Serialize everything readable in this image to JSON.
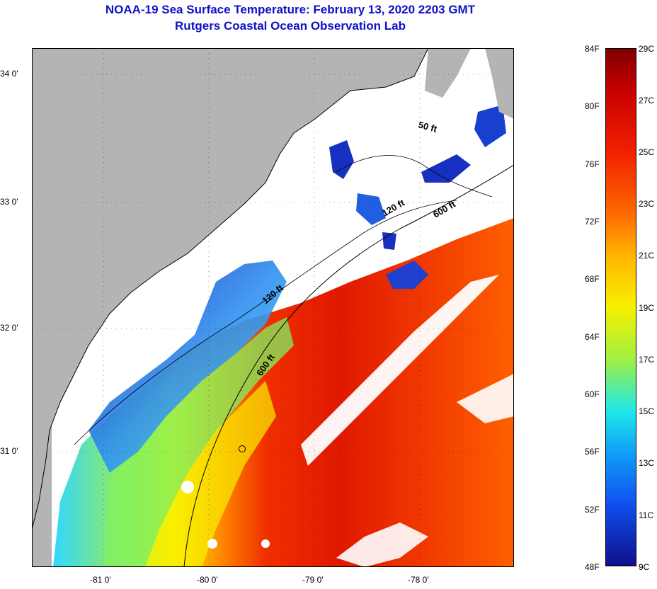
{
  "header": {
    "title": "NOAA-19 Sea Surface Temperature:  February 13, 2020 2203 GMT",
    "subtitle": "Rutgers Coastal Ocean Observation Lab"
  },
  "map": {
    "lat_labels": [
      "34 0'",
      "33 0'",
      "32 0'",
      "31 0'"
    ],
    "lon_labels": [
      "-81 0'",
      "-80 0'",
      "-79 0'",
      "-78 0'"
    ],
    "contour_labels": [
      "50 ft",
      "120 ft",
      "600 ft",
      "120 ft",
      "600 ft"
    ],
    "colors": {
      "land": "#b4b4b4",
      "cloud": "#ffffff",
      "cold": "#1030c8",
      "warm": "#e02000"
    }
  },
  "colorbar": {
    "fahrenheit": [
      "84F",
      "80F",
      "76F",
      "72F",
      "68F",
      "64F",
      "60F",
      "56F",
      "52F",
      "48F"
    ],
    "celsius": [
      "29C",
      "27C",
      "25C",
      "23C",
      "21C",
      "19C",
      "17C",
      "15C",
      "13C",
      "11C",
      "9C"
    ]
  }
}
